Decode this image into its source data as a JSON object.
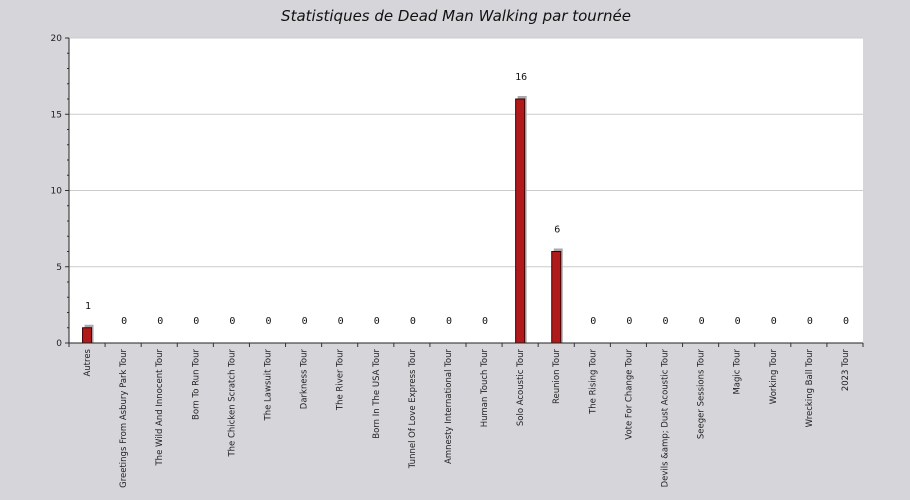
{
  "chart_data": {
    "type": "bar",
    "title": "Statistiques de Dead Man Walking par tournée",
    "xlabel": "",
    "ylabel": "",
    "ylim": [
      0,
      20
    ],
    "yticks": [
      0,
      5,
      10,
      15,
      20
    ],
    "grid": true,
    "categories": [
      "Autres",
      "Greetings From Asbury Park Tour",
      "The Wild And Innocent Tour",
      "Born To Run Tour",
      "The Chicken Scratch Tour",
      "The Lawsuit Tour",
      "Darkness Tour",
      "The River Tour",
      "Born In The USA Tour",
      "Tunnel Of Love Express Tour",
      "Amnesty International Tour",
      "Human Touch Tour",
      "Solo Acoustic Tour",
      "Reunion Tour",
      "The Rising Tour",
      "Vote For Change Tour",
      "Devils &amp; Dust Acoustic Tour",
      "Seeger Sessions Tour",
      "Magic Tour",
      "Working Tour",
      "Wrecking Ball Tour",
      "2023 Tour"
    ],
    "values": [
      1,
      0,
      0,
      0,
      0,
      0,
      0,
      0,
      0,
      0,
      0,
      0,
      16,
      6,
      0,
      0,
      0,
      0,
      0,
      0,
      0,
      0
    ],
    "colors": {
      "bar": "#b01a1a",
      "bar_stroke": "#3a0000",
      "bar_shadow": "#a9a9ad",
      "plot_bg": "#ffffff",
      "page_bg": "#d6d5da",
      "grid": "#cccccc"
    }
  }
}
